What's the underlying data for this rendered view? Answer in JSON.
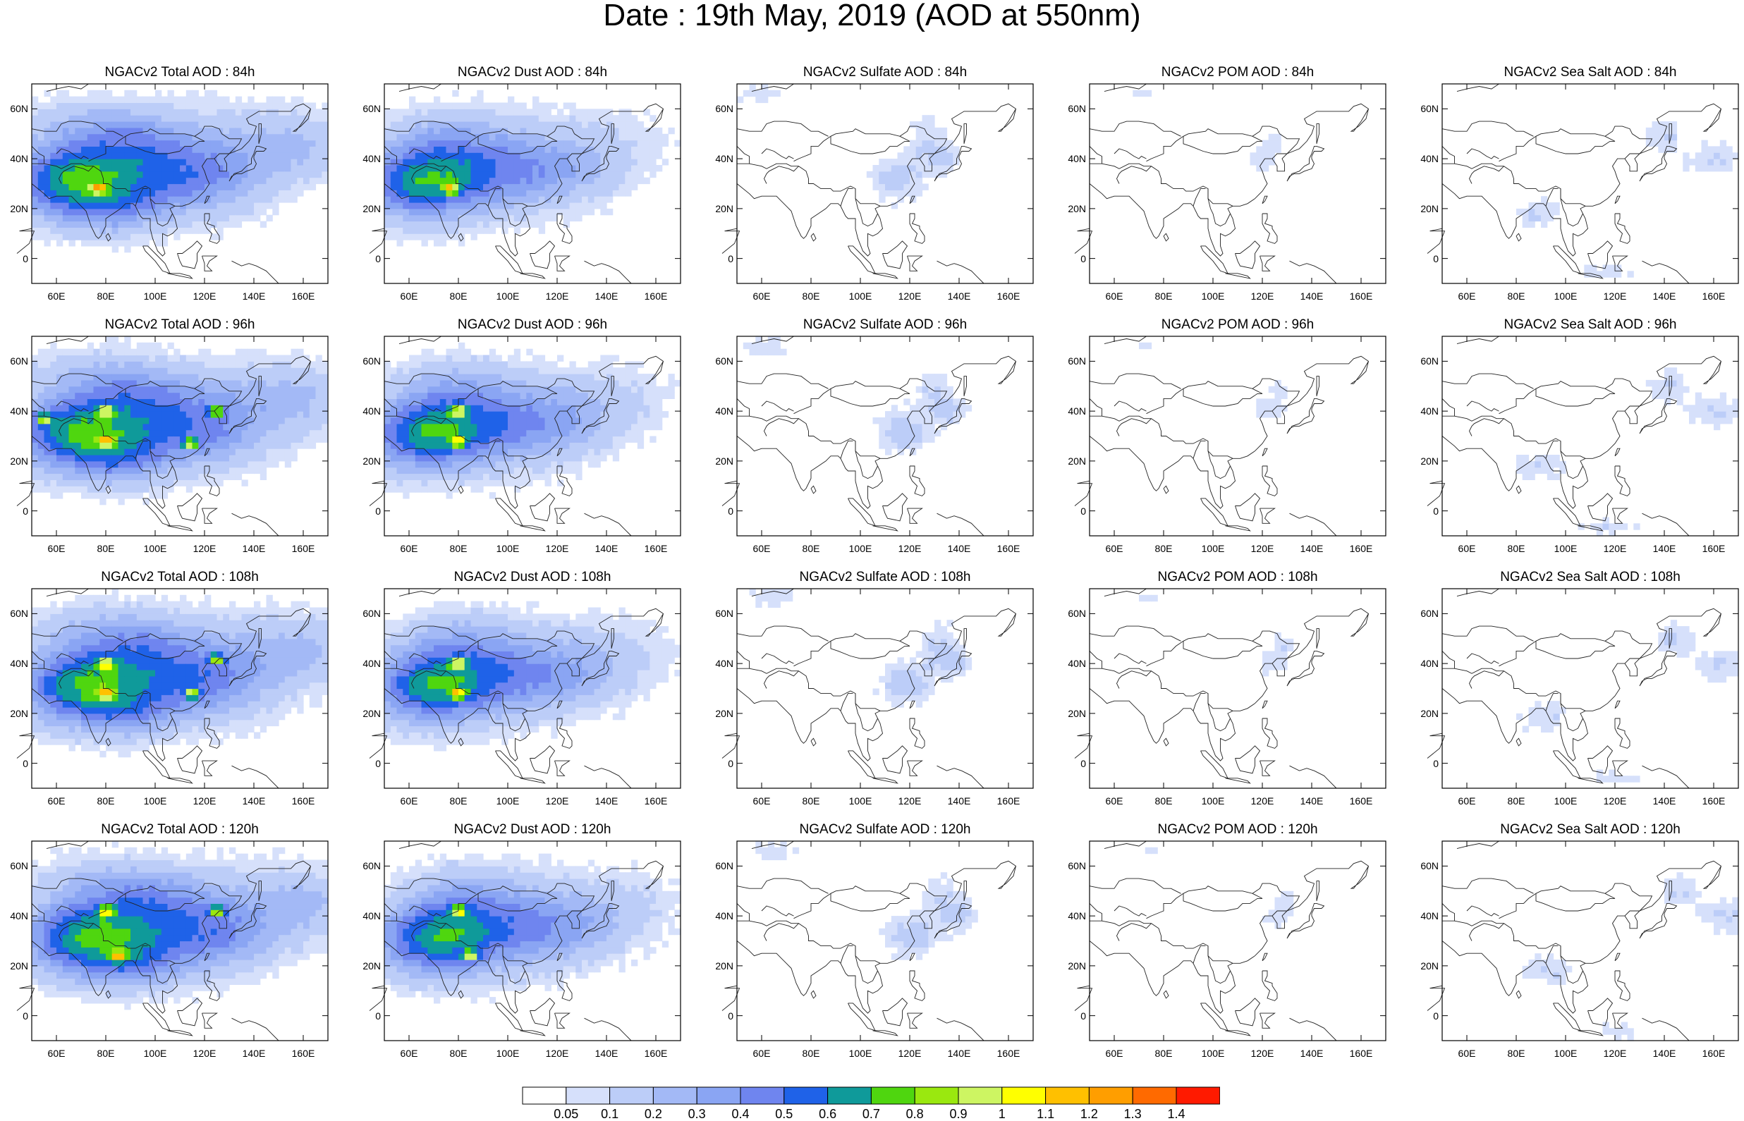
{
  "title": "Date : 19th May, 2019 (AOD at 550nm)",
  "axes": {
    "lat_ticks": [
      "60N",
      "40N",
      "20N",
      "0"
    ],
    "lon_ticks": [
      "60E",
      "80E",
      "100E",
      "120E",
      "140E",
      "160E"
    ]
  },
  "panels": [
    {
      "title": "NGACv2 Total AOD : 84h",
      "species": "total",
      "hour": 84
    },
    {
      "title": "NGACv2 Dust AOD : 84h",
      "species": "dust",
      "hour": 84
    },
    {
      "title": "NGACv2 Sulfate AOD : 84h",
      "species": "sulfate",
      "hour": 84
    },
    {
      "title": "NGACv2 POM AOD : 84h",
      "species": "pom",
      "hour": 84
    },
    {
      "title": "NGACv2 Sea Salt AOD : 84h",
      "species": "seasalt",
      "hour": 84
    },
    {
      "title": "NGACv2 Total AOD : 96h",
      "species": "total",
      "hour": 96
    },
    {
      "title": "NGACv2 Dust AOD : 96h",
      "species": "dust",
      "hour": 96
    },
    {
      "title": "NGACv2 Sulfate AOD : 96h",
      "species": "sulfate",
      "hour": 96
    },
    {
      "title": "NGACv2 POM AOD : 96h",
      "species": "pom",
      "hour": 96
    },
    {
      "title": "NGACv2 Sea Salt AOD : 96h",
      "species": "seasalt",
      "hour": 96
    },
    {
      "title": "NGACv2 Total AOD : 108h",
      "species": "total",
      "hour": 108
    },
    {
      "title": "NGACv2 Dust AOD : 108h",
      "species": "dust",
      "hour": 108
    },
    {
      "title": "NGACv2 Sulfate AOD : 108h",
      "species": "sulfate",
      "hour": 108
    },
    {
      "title": "NGACv2 POM AOD : 108h",
      "species": "pom",
      "hour": 108
    },
    {
      "title": "NGACv2 Sea Salt AOD : 108h",
      "species": "seasalt",
      "hour": 108
    },
    {
      "title": "NGACv2 Total AOD : 120h",
      "species": "total",
      "hour": 120
    },
    {
      "title": "NGACv2 Dust AOD : 120h",
      "species": "dust",
      "hour": 120
    },
    {
      "title": "NGACv2 Sulfate AOD : 120h",
      "species": "sulfate",
      "hour": 120
    },
    {
      "title": "NGACv2 POM AOD : 120h",
      "species": "pom",
      "hour": 120
    },
    {
      "title": "NGACv2 Sea Salt  AOD : 120h",
      "species": "seasalt",
      "hour": 120
    }
  ],
  "colorbar": {
    "labels": [
      "0.05",
      "0.1",
      "0.2",
      "0.3",
      "0.4",
      "0.5",
      "0.6",
      "0.7",
      "0.8",
      "0.9",
      "1",
      "1.1",
      "1.2",
      "1.3",
      "1.4"
    ],
    "colors": [
      "#ffffff",
      "#d6e0fb",
      "#bccdf8",
      "#a3b9f6",
      "#8aa5f3",
      "#6f85ef",
      "#1f62e8",
      "#0f9a9a",
      "#4fd60f",
      "#9ae80f",
      "#cdf562",
      "#ffff00",
      "#ffc000",
      "#ff9e00",
      "#ff6a00",
      "#ff1a00"
    ]
  }
}
